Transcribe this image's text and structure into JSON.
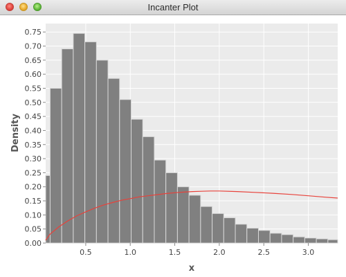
{
  "window": {
    "title": "Incanter Plot"
  },
  "chart_data": {
    "type": "bar",
    "xlabel": "x",
    "ylabel": "Density",
    "xlim": [
      0.05,
      3.33
    ],
    "ylim": [
      0,
      0.78
    ],
    "x_ticks": [
      0.5,
      1.0,
      1.5,
      2.0,
      2.5,
      3.0
    ],
    "x_tick_labels": [
      "0.5",
      "1.0",
      "1.5",
      "2.0",
      "2.5",
      "3.0"
    ],
    "y_ticks": [
      0.0,
      0.05,
      0.1,
      0.15,
      0.2,
      0.25,
      0.3,
      0.35,
      0.4,
      0.45,
      0.5,
      0.55,
      0.6,
      0.65,
      0.7,
      0.75
    ],
    "y_tick_labels": [
      "0.00",
      "0.05",
      "0.10",
      "0.15",
      "0.20",
      "0.25",
      "0.30",
      "0.35",
      "0.40",
      "0.45",
      "0.50",
      "0.55",
      "0.60",
      "0.65",
      "0.70",
      "0.75"
    ],
    "grid": true,
    "bins": {
      "edges": [
        0.05,
        0.1,
        0.23,
        0.36,
        0.49,
        0.62,
        0.75,
        0.88,
        1.01,
        1.14,
        1.27,
        1.4,
        1.53,
        1.66,
        1.79,
        1.92,
        2.05,
        2.18,
        2.31,
        2.44,
        2.57,
        2.7,
        2.83,
        2.96,
        3.09,
        3.22,
        3.33
      ],
      "values": [
        0.24,
        0.55,
        0.69,
        0.745,
        0.715,
        0.65,
        0.585,
        0.51,
        0.44,
        0.378,
        0.295,
        0.25,
        0.2,
        0.17,
        0.13,
        0.105,
        0.09,
        0.067,
        0.053,
        0.045,
        0.035,
        0.03,
        0.022,
        0.018,
        0.015,
        0.012
      ]
    },
    "series": [
      {
        "type": "line",
        "x": [
          0.05,
          0.1,
          0.2,
          0.3,
          0.4,
          0.5,
          0.6,
          0.7,
          0.8,
          0.9,
          1.0,
          1.1,
          1.2,
          1.3,
          1.4,
          1.5,
          1.6,
          1.7,
          1.8,
          1.9,
          2.0,
          2.2,
          2.4,
          2.6,
          2.8,
          3.0,
          3.2,
          3.33
        ],
        "y": [
          0.01,
          0.032,
          0.058,
          0.079,
          0.097,
          0.111,
          0.124,
          0.135,
          0.144,
          0.152,
          0.158,
          0.164,
          0.168,
          0.172,
          0.176,
          0.179,
          0.181,
          0.183,
          0.184,
          0.185,
          0.185,
          0.183,
          0.18,
          0.177,
          0.173,
          0.168,
          0.163,
          0.16
        ]
      }
    ],
    "colors": {
      "bar_fill": "#808080",
      "bar_edge": "#d8d8d8",
      "line": "#e8413a",
      "plot_bg": "#ebebeb",
      "grid": "#ffffff"
    }
  }
}
